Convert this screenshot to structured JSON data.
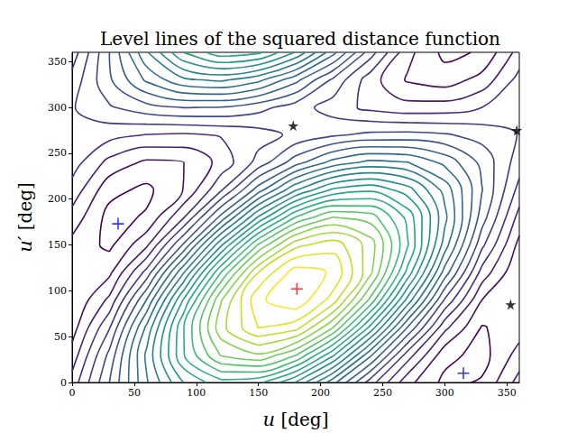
{
  "chart_data": {
    "type": "contour",
    "title": "Level lines of the squared distance function",
    "xlabel": "u [deg]",
    "ylabel": "u′ [deg]",
    "xlim": [
      0,
      360
    ],
    "ylim": [
      0,
      360
    ],
    "xticks": [
      0,
      50,
      100,
      150,
      200,
      250,
      300,
      350
    ],
    "yticks": [
      0,
      50,
      100,
      150,
      200,
      250,
      300,
      350
    ],
    "x": [
      0,
      30,
      60,
      90,
      120,
      150,
      180,
      210,
      240,
      270,
      300,
      330,
      360
    ],
    "y": [
      0,
      30,
      60,
      90,
      120,
      150,
      180,
      210,
      240,
      270,
      300,
      330,
      360
    ],
    "z": [
      [
        0.9,
        1.8,
        2.77,
        3.56,
        3.96,
        3.86,
        3.28,
        2.39,
        1.42,
        0.63,
        0.23,
        0.33,
        0.9
      ],
      [
        0.65,
        1.62,
        2.86,
        4.04,
        4.83,
        5.02,
        4.57,
        3.6,
        2.36,
        1.18,
        0.39,
        0.2,
        0.65
      ],
      [
        0.43,
        1.28,
        2.61,
        4.05,
        5.22,
        5.81,
        5.66,
        4.81,
        3.48,
        2.04,
        0.87,
        0.28,
        0.43
      ],
      [
        0.31,
        0.86,
        2.06,
        3.59,
        5.03,
        6.0,
        6.25,
        5.69,
        4.49,
        2.97,
        1.52,
        0.55,
        0.31
      ],
      [
        0.32,
        0.49,
        1.39,
        2.79,
        4.31,
        5.55,
        6.18,
        6.02,
        5.12,
        3.72,
        2.19,
        0.95,
        0.32
      ],
      [
        0.47,
        0.24,
        0.75,
        1.85,
        3.26,
        4.58,
        5.47,
        5.7,
        5.19,
        4.08,
        2.68,
        1.36,
        0.47
      ],
      [
        0.7,
        0.21,
        0.33,
        1.04,
        2.14,
        3.34,
        4.32,
        4.81,
        4.69,
        3.98,
        2.87,
        1.67,
        0.7
      ],
      [
        0.96,
        0.38,
        0.24,
        0.56,
        1.27,
        2.18,
        3.03,
        3.6,
        3.75,
        3.42,
        2.71,
        1.81,
        0.96
      ],
      [
        1.17,
        0.72,
        0.5,
        0.55,
        0.88,
        1.39,
        1.94,
        2.39,
        2.62,
        2.56,
        2.23,
        1.73,
        1.17
      ],
      [
        1.29,
        1.14,
        1.04,
        1.01,
        1.07,
        1.19,
        1.36,
        1.51,
        1.61,
        1.63,
        1.58,
        1.45,
        1.29
      ],
      [
        1.28,
        1.52,
        1.71,
        1.81,
        1.79,
        1.64,
        1.42,
        1.18,
        0.98,
        0.89,
        0.91,
        1.05,
        1.28
      ],
      [
        1.14,
        1.76,
        2.35,
        2.75,
        2.85,
        2.62,
        2.13,
        1.5,
        0.91,
        0.52,
        0.42,
        0.64,
        1.14
      ],
      [
        0.9,
        1.8,
        2.77,
        3.56,
        3.96,
        3.86,
        3.28,
        2.39,
        1.42,
        0.63,
        0.23,
        0.33,
        0.9
      ]
    ],
    "levels": [
      0.3,
      0.55,
      0.8,
      1.05,
      1.3,
      1.55,
      1.8,
      2.05,
      2.3,
      2.55,
      2.8,
      3.05,
      3.3,
      3.55,
      3.8,
      4.05,
      4.3,
      4.55,
      4.8,
      5.05,
      5.3,
      5.55,
      5.8,
      6.05
    ],
    "colors": [
      "#440154",
      "#471063",
      "#481f70",
      "#472d7b",
      "#443a83",
      "#404688",
      "#3b528b",
      "#355f8d",
      "#30698e",
      "#2c738e",
      "#287d8e",
      "#25858e",
      "#21918c",
      "#1f9a8a",
      "#22a884",
      "#2ab07f",
      "#3bbb75",
      "#52c569",
      "#6ccd5a",
      "#86d549",
      "#a5db36",
      "#c2df23",
      "#e2e418",
      "#fde725"
    ],
    "series": [
      {
        "type": "scatter",
        "marker": "plus",
        "color": "#ff0000",
        "x": [
          181
        ],
        "y": [
          102
        ]
      },
      {
        "type": "scatter",
        "marker": "plus",
        "color": "#0000ff",
        "x": [
          37,
          315
        ],
        "y": [
          173,
          10
        ]
      },
      {
        "type": "scatter",
        "marker": "star",
        "color": "#000000",
        "x": [
          178,
          358,
          353
        ],
        "y": [
          280,
          275,
          85
        ]
      }
    ]
  }
}
